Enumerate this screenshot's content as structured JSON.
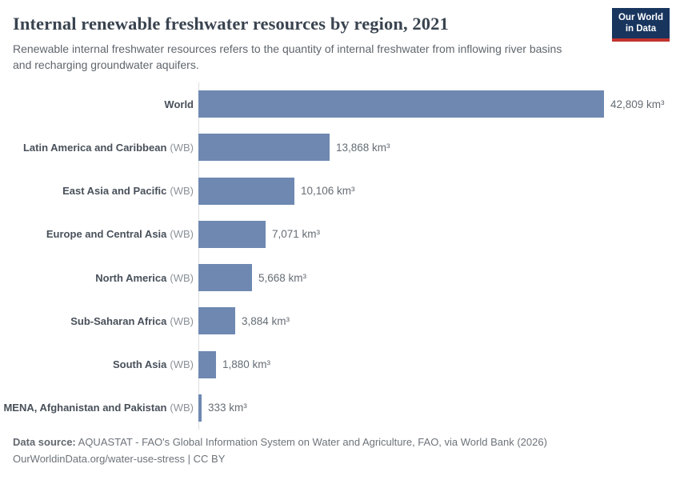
{
  "header": {
    "title": "Internal renewable freshwater resources by region, 2021",
    "subtitle": "Renewable internal freshwater resources refers to the quantity of internal freshwater from inflowing river basins and recharging groundwater aquifers.",
    "logo": {
      "line1": "Our World",
      "line2": "in Data"
    }
  },
  "chart_data": {
    "type": "bar",
    "orientation": "horizontal",
    "title": "Internal renewable freshwater resources by region, 2021",
    "unit": "km³",
    "xlim": [
      0,
      42809
    ],
    "grid": "off",
    "legend": "none",
    "categories": [
      "World",
      "Latin America and Caribbean (WB)",
      "East Asia and Pacific (WB)",
      "Europe and Central Asia (WB)",
      "North America (WB)",
      "Sub-Saharan Africa (WB)",
      "South Asia (WB)",
      "MENA, Afghanistan and Pakistan (WB)"
    ],
    "values": [
      42809,
      13868,
      10106,
      7071,
      5668,
      3884,
      1880,
      333
    ],
    "bars": [
      {
        "name": "World",
        "suffix": "",
        "value": 42809,
        "value_label": "42,809 km³"
      },
      {
        "name": "Latin America and Caribbean",
        "suffix": "(WB)",
        "value": 13868,
        "value_label": "13,868 km³"
      },
      {
        "name": "East Asia and Pacific",
        "suffix": "(WB)",
        "value": 10106,
        "value_label": "10,106 km³"
      },
      {
        "name": "Europe and Central Asia",
        "suffix": "(WB)",
        "value": 7071,
        "value_label": "7,071 km³"
      },
      {
        "name": "North America",
        "suffix": "(WB)",
        "value": 5668,
        "value_label": "5,668 km³"
      },
      {
        "name": "Sub-Saharan Africa",
        "suffix": "(WB)",
        "value": 3884,
        "value_label": "3,884 km³"
      },
      {
        "name": "South Asia",
        "suffix": "(WB)",
        "value": 1880,
        "value_label": "1,880 km³"
      },
      {
        "name": "MENA, Afghanistan and Pakistan",
        "suffix": "(WB)",
        "value": 333,
        "value_label": "333 km³"
      }
    ],
    "colors": {
      "bar": "#6e88b1",
      "axis_line": "#dcdee0"
    }
  },
  "footer": {
    "source_prefix": "Data source:",
    "source_text": " AQUASTAT - FAO's Global Information System on Water and Agriculture, FAO, via World Bank (2026)",
    "note": "OurWorldinData.org/water-use-stress | CC BY"
  }
}
